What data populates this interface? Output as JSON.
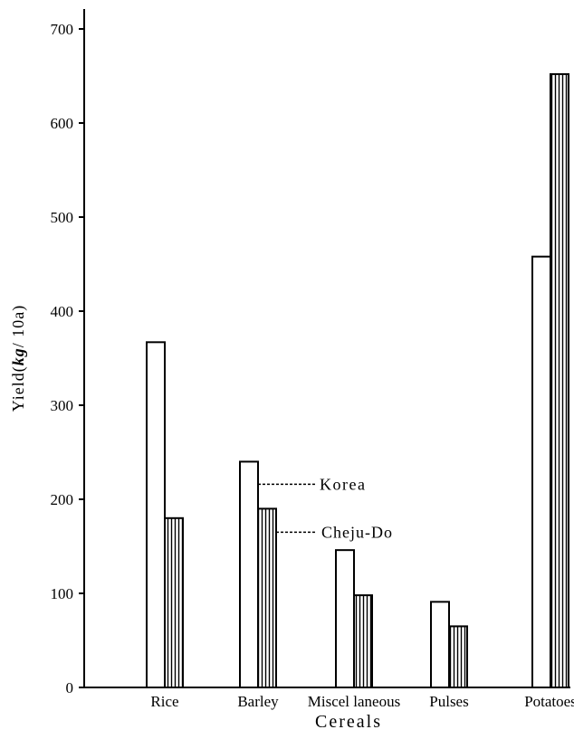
{
  "chart_data": {
    "type": "bar",
    "title": "",
    "xlabel": "Cereals",
    "ylabel": "Yield(kg/10a)",
    "ylabel_parts": {
      "prefix": "Yield(",
      "unit_main": "kg",
      "unit_rest": "/ 10a)"
    },
    "categories": [
      "Rice",
      "Barley",
      "Miscel laneous",
      "Pulses",
      "Potatoes"
    ],
    "series": [
      {
        "name": "Korea",
        "values": [
          367,
          240,
          146,
          91,
          458
        ]
      },
      {
        "name": "Cheju-Do",
        "values": [
          180,
          190,
          98,
          65,
          652
        ]
      }
    ],
    "ylim": [
      0,
      700
    ],
    "yticks": [
      "0",
      "100",
      "200",
      "300",
      "400",
      "500",
      "600",
      "700"
    ],
    "grid": false,
    "legend": "annotation-callouts",
    "colors": {
      "korea_fill": "#ffffff",
      "cheju_fill": "#ffffff",
      "stroke": "#000000"
    }
  }
}
